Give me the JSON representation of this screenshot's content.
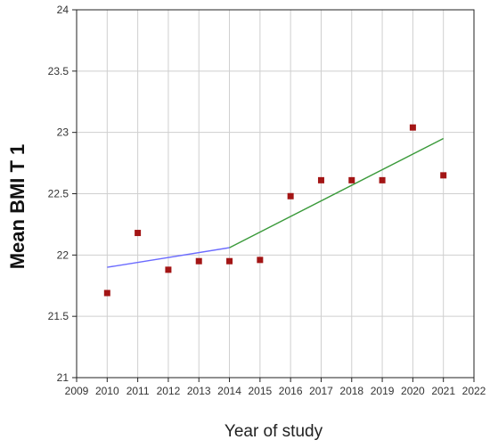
{
  "chart_data": {
    "type": "scatter",
    "title": "",
    "xlabel": "Year of study",
    "ylabel": "Mean BMI T 1",
    "xlim": [
      2009,
      2022
    ],
    "ylim": [
      21,
      24
    ],
    "xticks": [
      "2009",
      "2010",
      "2011",
      "2012",
      "2013",
      "2014",
      "2015",
      "2016",
      "2017",
      "2018",
      "2019",
      "2020",
      "2021",
      "2022"
    ],
    "yticks": [
      "21",
      "21.5",
      "22",
      "22.5",
      "23",
      "23.5",
      "24"
    ],
    "grid": true,
    "points": {
      "color": "#a31515",
      "x": [
        2010,
        2011,
        2012,
        2013,
        2014,
        2015,
        2016,
        2017,
        2018,
        2019,
        2020,
        2021
      ],
      "y": [
        21.69,
        22.18,
        21.88,
        21.95,
        21.95,
        21.96,
        22.48,
        22.61,
        22.61,
        22.61,
        23.04,
        22.65
      ]
    },
    "trend_lines": [
      {
        "color": "#6b6bff",
        "x": [
          2010,
          2014
        ],
        "y": [
          21.9,
          22.06
        ]
      },
      {
        "color": "#3a9a3a",
        "x": [
          2014,
          2021
        ],
        "y": [
          22.06,
          22.95
        ]
      }
    ]
  }
}
